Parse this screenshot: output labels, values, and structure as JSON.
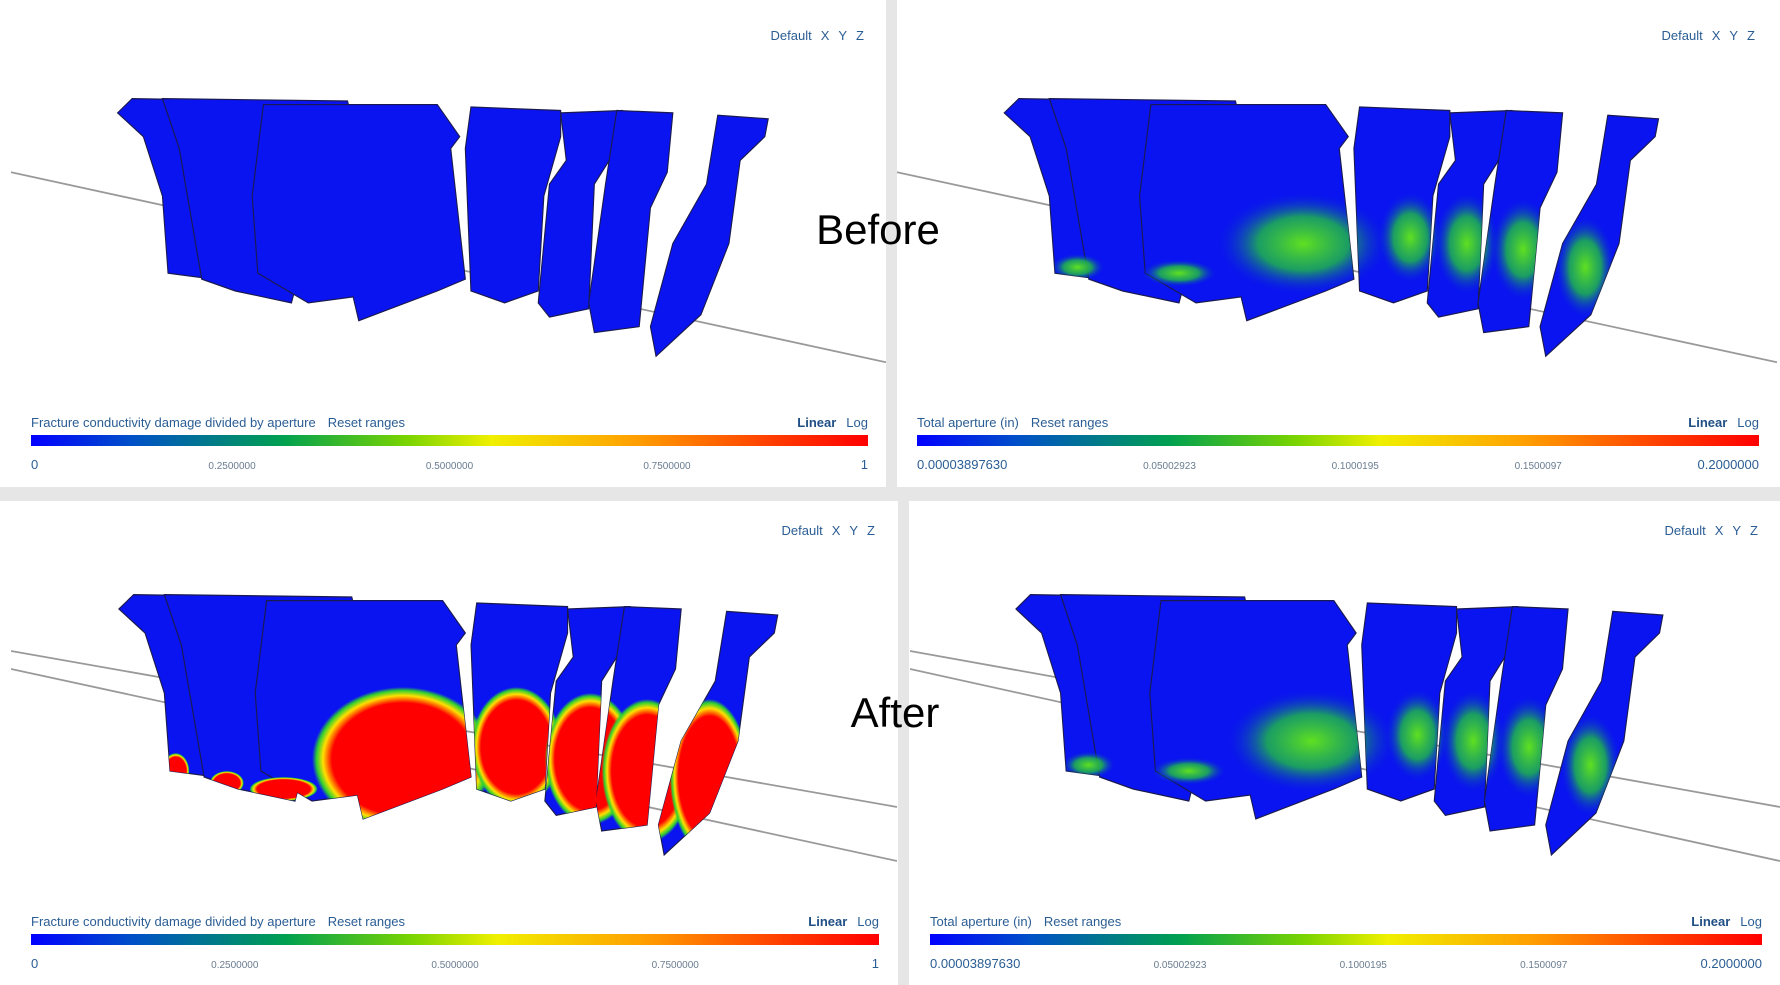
{
  "labels": {
    "before": "Before",
    "after": "After"
  },
  "panels": [
    {
      "view_buttons": [
        "Default",
        "X",
        "Y",
        "Z"
      ],
      "legend": {
        "title": "Fracture conductivity damage divided by aperture",
        "reset": "Reset ranges",
        "linear": "Linear",
        "log": "Log",
        "ticks": [
          "0",
          "0.2500000",
          "0.5000000",
          "0.7500000",
          "1"
        ]
      }
    },
    {
      "view_buttons": [
        "Default",
        "X",
        "Y",
        "Z"
      ],
      "legend": {
        "title": "Total aperture (in)",
        "reset": "Reset ranges",
        "linear": "Linear",
        "log": "Log",
        "ticks": [
          "0.00003897630",
          "0.05002923",
          "0.1000195",
          "0.1500097",
          "0.2000000"
        ]
      }
    },
    {
      "view_buttons": [
        "Default",
        "X",
        "Y",
        "Z"
      ],
      "legend": {
        "title": "Fracture conductivity damage divided by aperture",
        "reset": "Reset ranges",
        "linear": "Linear",
        "log": "Log",
        "ticks": [
          "0",
          "0.2500000",
          "0.5000000",
          "0.7500000",
          "1"
        ]
      }
    },
    {
      "view_buttons": [
        "Default",
        "X",
        "Y",
        "Z"
      ],
      "legend": {
        "title": "Total aperture (in)",
        "reset": "Reset ranges",
        "linear": "Linear",
        "log": "Log",
        "ticks": [
          "0.00003897630",
          "0.05002923",
          "0.1000195",
          "0.1500097",
          "0.2000000"
        ]
      }
    }
  ]
}
